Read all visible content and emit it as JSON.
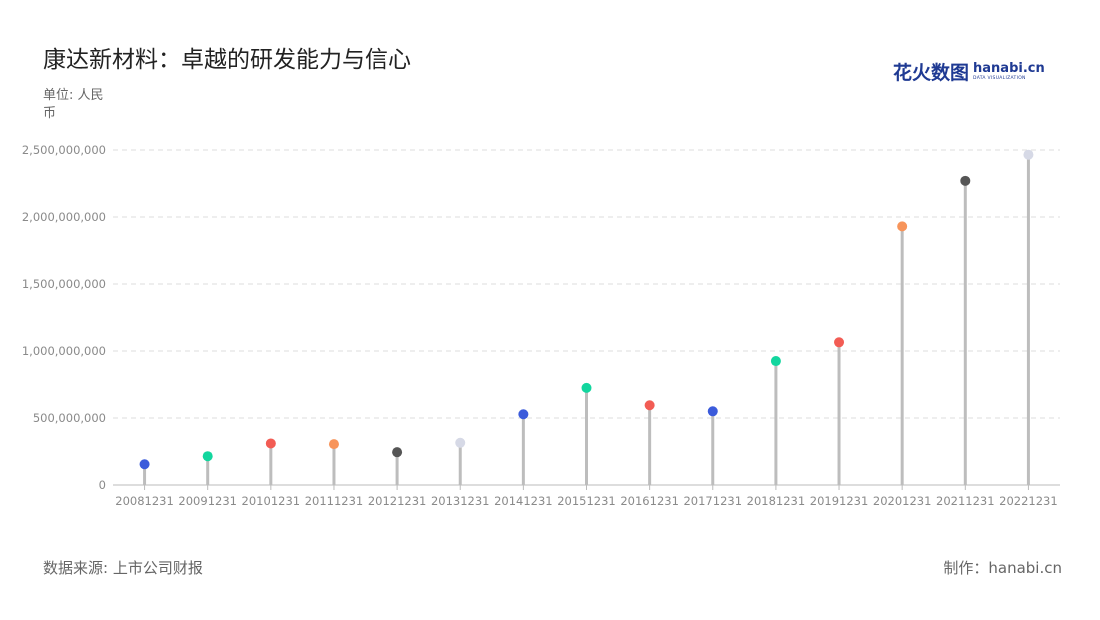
{
  "header": {
    "title": "康达新材料：卓越的研发能力与信心",
    "unit": "单位: 人民币"
  },
  "logo": {
    "cn": "花火数图",
    "en": "hanabi.cn",
    "sub": "DATA VISUALIZATION"
  },
  "footer": {
    "source": "数据来源: 上市公司财报",
    "credit": "制作：hanabi.cn"
  },
  "colors": {
    "stem": "#bdbdbd",
    "grid": "#dddddd",
    "palette": [
      "#3b5bdb",
      "#12d69e",
      "#f25c54",
      "#f7945a",
      "#555555",
      "#d6d9e6"
    ]
  },
  "chart_data": {
    "type": "lollipop",
    "title": "康达新材料：卓越的研发能力与信心",
    "ylabel": "单位: 人民币",
    "ylim": [
      0,
      2500000000
    ],
    "yticks": [
      0,
      500000000,
      1000000000,
      1500000000,
      2000000000,
      2500000000
    ],
    "ytick_labels": [
      "0",
      "500,000,000",
      "1,000,000,000",
      "1,500,000,000",
      "2,000,000,000",
      "2,500,000,000"
    ],
    "grid": true,
    "categories": [
      "20081231",
      "20091231",
      "20101231",
      "20111231",
      "20121231",
      "20131231",
      "20141231",
      "20151231",
      "20161231",
      "20171231",
      "20181231",
      "20191231",
      "20201231",
      "20211231",
      "20221231"
    ],
    "values": [
      155000000,
      215000000,
      310000000,
      305000000,
      245000000,
      315000000,
      528000000,
      725000000,
      595000000,
      550000000,
      925000000,
      1065000000,
      1930000000,
      2270000000,
      2465000000
    ],
    "point_colors": [
      "#3b5bdb",
      "#12d69e",
      "#f25c54",
      "#f7945a",
      "#555555",
      "#d6d9e6",
      "#3b5bdb",
      "#12d69e",
      "#f25c54",
      "#3b5bdb",
      "#12d69e",
      "#f25c54",
      "#f7945a",
      "#555555",
      "#d6d9e6"
    ]
  }
}
